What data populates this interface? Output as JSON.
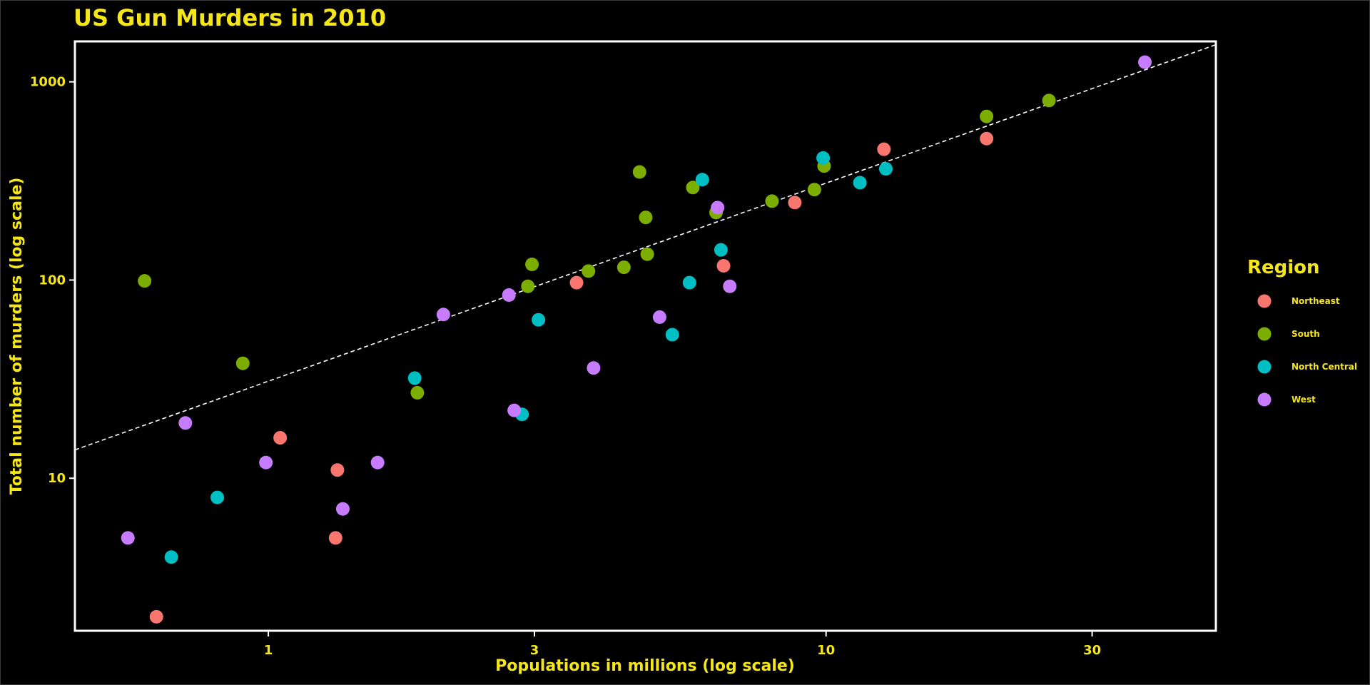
{
  "chart_data": {
    "type": "scatter",
    "title": "US Gun Murders in 2010",
    "xlabel": "Populations in millions (log scale)",
    "ylabel": "Total number of murders (log scale)",
    "x_scale": "log10",
    "y_scale": "log10",
    "xlim": [
      0.45,
      50
    ],
    "ylim": [
      1.7,
      1600
    ],
    "x_ticks": [
      {
        "value": 1,
        "label": "1"
      },
      {
        "value": 3,
        "label": "3"
      },
      {
        "value": 10,
        "label": "10"
      },
      {
        "value": 30,
        "label": "30"
      }
    ],
    "y_ticks": [
      {
        "value": 10,
        "label": "10"
      },
      {
        "value": 100,
        "label": "100"
      },
      {
        "value": 1000,
        "label": "1000"
      }
    ],
    "grid": false,
    "legend_position": "right",
    "legend_title": "Region",
    "reference_line": {
      "style": "dashed",
      "color": "#ffffff",
      "points": [
        [
          0.45,
          13.9
        ],
        [
          50,
          1540
        ]
      ]
    },
    "series": [
      {
        "name": "Northeast",
        "color": "#F8766D",
        "points": [
          [
            0.63,
            2
          ],
          [
            1.05,
            16
          ],
          [
            1.33,
            11
          ],
          [
            1.32,
            5
          ],
          [
            3.57,
            97
          ],
          [
            6.55,
            118
          ],
          [
            8.79,
            246
          ],
          [
            12.7,
            457
          ],
          [
            19.4,
            517
          ]
        ]
      },
      {
        "name": "South",
        "color": "#7CAE00",
        "points": [
          [
            0.6,
            99
          ],
          [
            0.9,
            38
          ],
          [
            1.85,
            27
          ],
          [
            2.92,
            93
          ],
          [
            2.97,
            120
          ],
          [
            3.75,
            111
          ],
          [
            4.34,
            116
          ],
          [
            4.63,
            351
          ],
          [
            4.78,
            135
          ],
          [
            4.75,
            207
          ],
          [
            5.77,
            293
          ],
          [
            6.35,
            219
          ],
          [
            8.0,
            250
          ],
          [
            9.53,
            286
          ],
          [
            9.92,
            376
          ],
          [
            19.4,
            669
          ],
          [
            25.1,
            805
          ]
        ]
      },
      {
        "name": "North Central",
        "color": "#00BFC4",
        "points": [
          [
            0.67,
            4
          ],
          [
            0.81,
            8
          ],
          [
            1.83,
            32
          ],
          [
            2.85,
            21
          ],
          [
            3.05,
            63
          ],
          [
            5.3,
            53
          ],
          [
            5.69,
            97
          ],
          [
            6.0,
            321
          ],
          [
            6.48,
            142
          ],
          [
            9.88,
            413
          ],
          [
            11.5,
            310
          ],
          [
            12.8,
            364
          ]
        ]
      },
      {
        "name": "West",
        "color": "#C77CFF",
        "points": [
          [
            0.56,
            5
          ],
          [
            0.71,
            19
          ],
          [
            0.99,
            12
          ],
          [
            1.36,
            7
          ],
          [
            1.57,
            12
          ],
          [
            2.06,
            67
          ],
          [
            2.7,
            84
          ],
          [
            2.76,
            22
          ],
          [
            3.83,
            36
          ],
          [
            5.03,
            65
          ],
          [
            6.39,
            232
          ],
          [
            6.72,
            93
          ],
          [
            37.3,
            1257
          ]
        ]
      }
    ]
  }
}
